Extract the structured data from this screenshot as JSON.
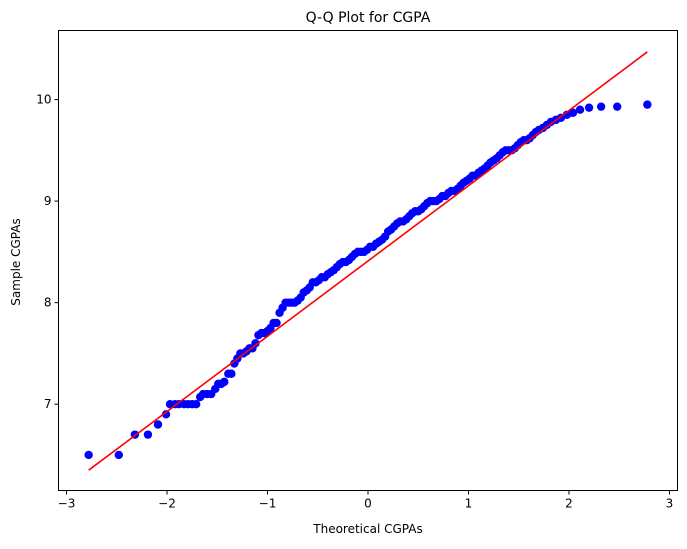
{
  "chart_data": {
    "type": "scatter",
    "title": "Q-Q Plot for CGPA",
    "xlabel": "Theoretical CGPAs",
    "ylabel": "Sample CGPAs",
    "xlim": [
      -3.08,
      3.08
    ],
    "ylim": [
      6.15,
      10.68
    ],
    "x_ticks": [
      -3,
      -2,
      -1,
      0,
      1,
      2,
      3
    ],
    "y_ticks": [
      7,
      8,
      9,
      10
    ],
    "x_tick_labels": [
      "−3",
      "−2",
      "−1",
      "0",
      "1",
      "2",
      "3"
    ],
    "y_tick_labels": [
      "7",
      "8",
      "9",
      "10"
    ],
    "grid": false,
    "point_color": "#0000ff",
    "line_color": "#ff0000",
    "reference_line": {
      "x": [
        -2.78,
        2.78
      ],
      "y": [
        6.35,
        10.47
      ]
    },
    "points": {
      "x": [
        -2.78,
        -2.48,
        -2.32,
        -2.19,
        -2.09,
        -2.01,
        -1.97,
        -1.92,
        -1.88,
        -1.83,
        -1.79,
        -1.75,
        -1.71,
        -1.67,
        -1.64,
        -1.6,
        -1.56,
        -1.52,
        -1.49,
        -1.46,
        -1.43,
        -1.39,
        -1.36,
        -1.33,
        -1.3,
        -1.27,
        -1.24,
        -1.21,
        -1.18,
        -1.15,
        -1.12,
        -1.09,
        -1.06,
        -1.03,
        -1.0,
        -0.97,
        -0.94,
        -0.91,
        -0.88,
        -0.85,
        -0.82,
        -0.79,
        -0.76,
        -0.73,
        -0.7,
        -0.67,
        -0.64,
        -0.61,
        -0.58,
        -0.55,
        -0.52,
        -0.49,
        -0.46,
        -0.43,
        -0.4,
        -0.37,
        -0.34,
        -0.31,
        -0.28,
        -0.25,
        -0.22,
        -0.19,
        -0.16,
        -0.13,
        -0.1,
        -0.07,
        -0.04,
        -0.01,
        0.02,
        0.05,
        0.08,
        0.11,
        0.14,
        0.17,
        0.2,
        0.23,
        0.26,
        0.29,
        0.32,
        0.35,
        0.38,
        0.41,
        0.44,
        0.47,
        0.5,
        0.53,
        0.56,
        0.59,
        0.62,
        0.65,
        0.68,
        0.71,
        0.74,
        0.77,
        0.8,
        0.83,
        0.86,
        0.89,
        0.92,
        0.95,
        0.98,
        1.01,
        1.04,
        1.07,
        1.1,
        1.13,
        1.16,
        1.19,
        1.22,
        1.25,
        1.28,
        1.31,
        1.34,
        1.37,
        1.4,
        1.43,
        1.46,
        1.49,
        1.52,
        1.55,
        1.58,
        1.61,
        1.64,
        1.67,
        1.7,
        1.74,
        1.78,
        1.82,
        1.87,
        1.92,
        1.98,
        2.04,
        2.11,
        2.2,
        2.32,
        2.48,
        2.78
      ],
      "y": [
        6.5,
        6.5,
        6.7,
        6.7,
        6.8,
        6.9,
        7.0,
        7.0,
        7.0,
        7.0,
        7.0,
        7.0,
        7.0,
        7.07,
        7.1,
        7.1,
        7.1,
        7.15,
        7.2,
        7.2,
        7.22,
        7.3,
        7.3,
        7.4,
        7.45,
        7.5,
        7.5,
        7.52,
        7.55,
        7.55,
        7.6,
        7.68,
        7.7,
        7.7,
        7.72,
        7.75,
        7.8,
        7.8,
        7.9,
        7.95,
        8.0,
        8.0,
        8.0,
        8.0,
        8.02,
        8.05,
        8.1,
        8.12,
        8.15,
        8.2,
        8.2,
        8.22,
        8.25,
        8.25,
        8.28,
        8.3,
        8.32,
        8.35,
        8.38,
        8.4,
        8.4,
        8.42,
        8.45,
        8.48,
        8.5,
        8.5,
        8.5,
        8.52,
        8.55,
        8.55,
        8.58,
        8.6,
        8.62,
        8.65,
        8.7,
        8.72,
        8.75,
        8.78,
        8.8,
        8.8,
        8.82,
        8.85,
        8.88,
        8.9,
        8.9,
        8.92,
        8.95,
        8.98,
        9.0,
        9.0,
        9.0,
        9.02,
        9.05,
        9.05,
        9.08,
        9.1,
        9.1,
        9.12,
        9.15,
        9.18,
        9.2,
        9.22,
        9.25,
        9.25,
        9.28,
        9.3,
        9.32,
        9.35,
        9.38,
        9.4,
        9.42,
        9.45,
        9.48,
        9.5,
        9.5,
        9.5,
        9.52,
        9.55,
        9.58,
        9.6,
        9.6,
        9.62,
        9.65,
        9.68,
        9.7,
        9.72,
        9.75,
        9.78,
        9.8,
        9.82,
        9.85,
        9.87,
        9.9,
        9.92,
        9.93,
        9.93,
        9.95
      ]
    }
  }
}
